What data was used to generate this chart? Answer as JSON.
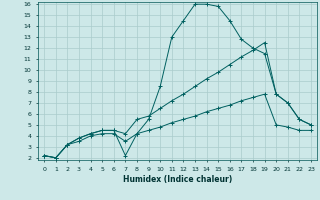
{
  "xlabel": "Humidex (Indice chaleur)",
  "ylabel": "",
  "xlim": [
    -0.5,
    23.5
  ],
  "ylim": [
    1.8,
    16.2
  ],
  "xticks": [
    0,
    1,
    2,
    3,
    4,
    5,
    6,
    7,
    8,
    9,
    10,
    11,
    12,
    13,
    14,
    15,
    16,
    17,
    18,
    19,
    20,
    21,
    22,
    23
  ],
  "yticks": [
    2,
    3,
    4,
    5,
    6,
    7,
    8,
    9,
    10,
    11,
    12,
    13,
    14,
    15,
    16
  ],
  "bg_color": "#cde8e8",
  "grid_color": "#aacccc",
  "line_color": "#006060",
  "line1_x": [
    0,
    1,
    2,
    3,
    4,
    5,
    6,
    7,
    8,
    9,
    10,
    11,
    12,
    13,
    14,
    15,
    16,
    17,
    18,
    19,
    20,
    21,
    22,
    23
  ],
  "line1_y": [
    2.2,
    2.0,
    3.2,
    3.8,
    4.2,
    4.5,
    4.5,
    2.2,
    4.2,
    5.5,
    8.5,
    13.0,
    14.5,
    16.0,
    16.0,
    15.8,
    14.5,
    12.8,
    12.0,
    11.5,
    7.8,
    7.0,
    5.5,
    5.0
  ],
  "line2_x": [
    0,
    1,
    2,
    3,
    4,
    5,
    6,
    7,
    8,
    9,
    10,
    11,
    12,
    13,
    14,
    15,
    16,
    17,
    18,
    19,
    20,
    21,
    22,
    23
  ],
  "line2_y": [
    2.2,
    2.0,
    3.2,
    3.8,
    4.2,
    4.5,
    4.5,
    4.2,
    5.5,
    5.8,
    6.5,
    7.2,
    7.8,
    8.5,
    9.2,
    9.8,
    10.5,
    11.2,
    11.8,
    12.5,
    7.8,
    7.0,
    5.5,
    5.0
  ],
  "line3_x": [
    0,
    1,
    2,
    3,
    4,
    5,
    6,
    7,
    8,
    9,
    10,
    11,
    12,
    13,
    14,
    15,
    16,
    17,
    18,
    19,
    20,
    21,
    22,
    23
  ],
  "line3_y": [
    2.2,
    2.0,
    3.2,
    3.5,
    4.0,
    4.2,
    4.2,
    3.5,
    4.2,
    4.5,
    4.8,
    5.2,
    5.5,
    5.8,
    6.2,
    6.5,
    6.8,
    7.2,
    7.5,
    7.8,
    5.0,
    4.8,
    4.5,
    4.5
  ]
}
